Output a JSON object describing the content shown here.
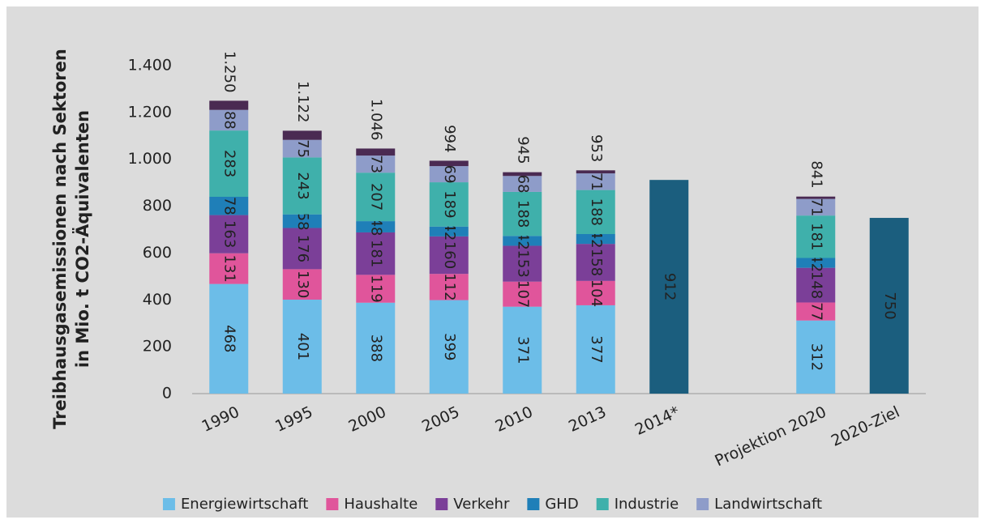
{
  "chart_data": {
    "type": "stacked-bar",
    "y_label": [
      "Treibhausgasemissionen nach Sektoren",
      "in Mio. t CO2-Äquivalenten"
    ],
    "categories": [
      "1990",
      "1995",
      "2000",
      "2005",
      "2010",
      "2013",
      "2014*",
      null,
      "Projektion 2020",
      "2020-Ziel"
    ],
    "series": [
      {
        "name": "Energiewirtschaft",
        "color": "#6cbde8",
        "values": [
          468,
          401,
          388,
          399,
          371,
          377,
          null,
          null,
          312,
          null
        ]
      },
      {
        "name": "Haushalte",
        "color": "#e0559b",
        "values": [
          131,
          130,
          119,
          112,
          107,
          104,
          null,
          null,
          77,
          null
        ]
      },
      {
        "name": "Verkehr",
        "color": "#7b3f98",
        "values": [
          163,
          176,
          181,
          160,
          153,
          158,
          null,
          null,
          148,
          null
        ]
      },
      {
        "name": "GHD",
        "color": "#1f7fb8",
        "values": [
          78,
          58,
          48,
          42,
          42,
          42,
          null,
          null,
          42,
          null
        ]
      },
      {
        "name": "Industrie",
        "color": "#3fb0ab",
        "values": [
          283,
          243,
          207,
          189,
          188,
          188,
          null,
          null,
          181,
          null
        ]
      },
      {
        "name": "Landwirtschaft",
        "color": "#8e9cc9",
        "values": [
          88,
          75,
          73,
          69,
          68,
          71,
          null,
          null,
          71,
          null
        ]
      },
      {
        "color": "#4a2a52",
        "values": [
          39,
          39,
          30,
          23,
          16,
          13,
          null,
          null,
          10,
          null
        ]
      },
      {
        "color": "#1b5e7e",
        "values": [
          null,
          null,
          null,
          null,
          null,
          null,
          912,
          null,
          null,
          750
        ]
      }
    ],
    "totals": {
      "values": [
        1250,
        1122,
        1046,
        994,
        945,
        953,
        null,
        null,
        841,
        null
      ],
      "value_labels": [
        "1.250",
        "1.122",
        "1.046",
        "994",
        "945",
        "953",
        null,
        null,
        "841",
        null
      ]
    },
    "ylim": [
      0,
      1400
    ],
    "yticks": [
      0,
      200,
      400,
      600,
      800,
      {
        "value": 1000,
        "label": "1.000"
      },
      {
        "value": 1200,
        "label": "1.200"
      },
      {
        "value": 1400,
        "label": "1.400"
      }
    ],
    "legend": "bottom"
  }
}
